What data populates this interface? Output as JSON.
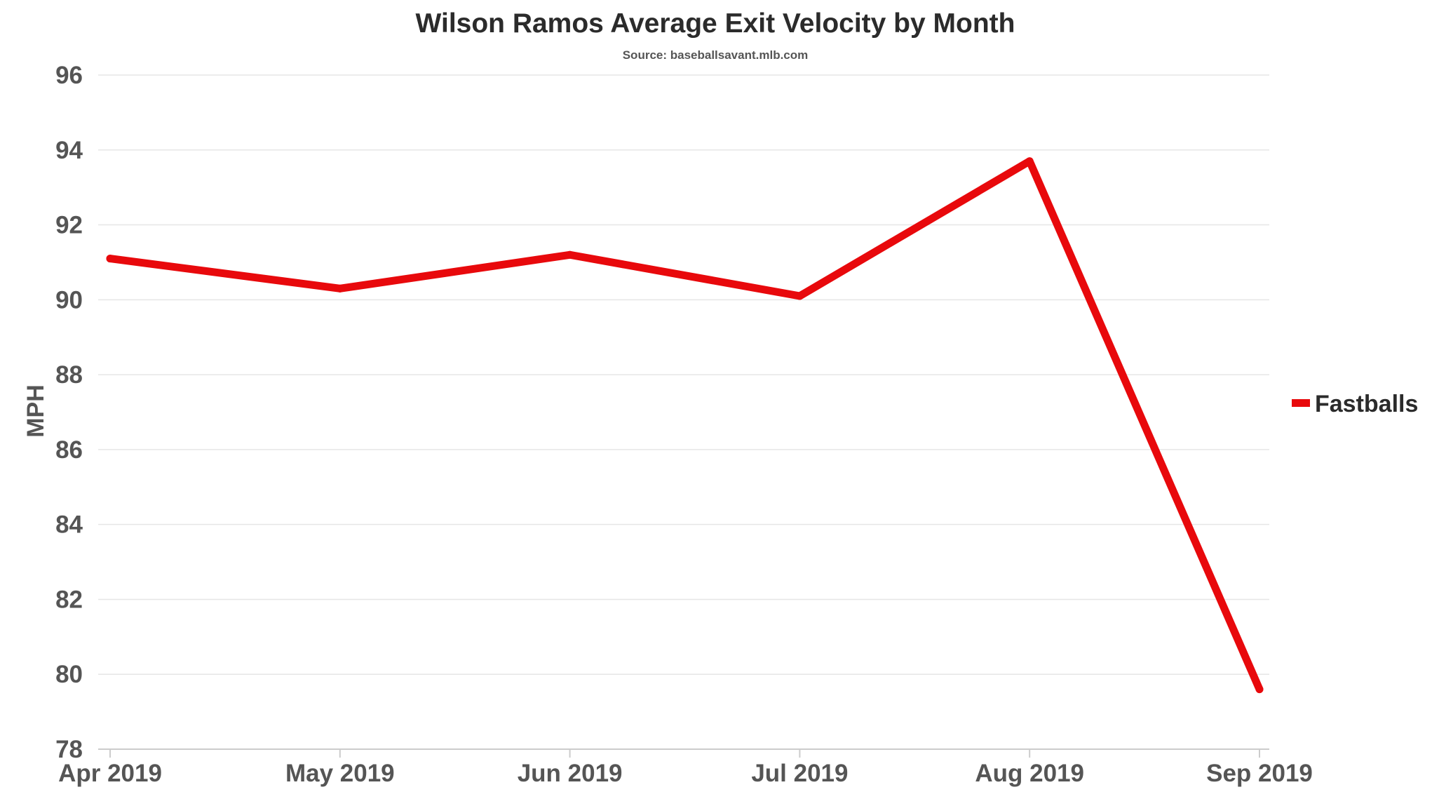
{
  "chart_data": {
    "type": "line",
    "title": "Wilson Ramos Average Exit Velocity by Month",
    "subtitle": "Source: baseballsavant.mlb.com",
    "xlabel": "",
    "ylabel": "MPH",
    "categories": [
      "Apr 2019",
      "May 2019",
      "Jun 2019",
      "Jul 2019",
      "Aug 2019",
      "Sep 2019"
    ],
    "ylim": [
      78,
      96
    ],
    "yticks": [
      "78",
      "80",
      "82",
      "84",
      "86",
      "88",
      "90",
      "92",
      "94",
      "96"
    ],
    "grid": true,
    "legend_position": "right",
    "series": [
      {
        "name": "Fastballs",
        "color": "#e8090c",
        "values": [
          91.1,
          90.3,
          91.2,
          90.1,
          93.7,
          79.6
        ]
      }
    ]
  }
}
